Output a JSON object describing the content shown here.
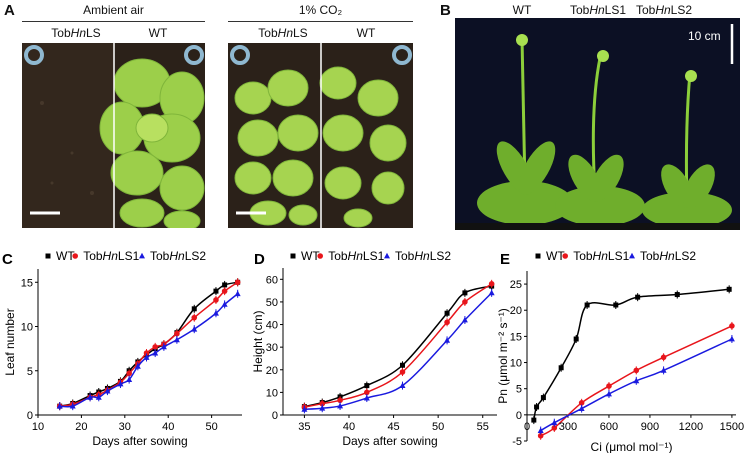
{
  "panel_A": {
    "letter": "A",
    "groups": [
      {
        "title": "Ambient air",
        "left_label": "TobHnLS",
        "right_label": "WT"
      },
      {
        "title": "1% CO₂",
        "left_label": "TobHnLS",
        "right_label": "WT"
      }
    ]
  },
  "panel_B": {
    "letter": "B",
    "labels": [
      "WT",
      "TobHnLS1",
      "TobHnLS2"
    ],
    "scale_bar": "10 cm"
  },
  "colors": {
    "WT": "#000000",
    "TobHnLS1": "#e8151b",
    "TobHnLS2": "#1a1adf"
  },
  "chart_data": [
    {
      "panel": "C",
      "type": "line",
      "xlabel": "Days after sowing",
      "ylabel": "Leaf number",
      "xlim": [
        10,
        57
      ],
      "ylim": [
        0,
        16.5
      ],
      "xticks": [
        10,
        20,
        30,
        40,
        50
      ],
      "yticks": [
        0,
        5,
        10,
        15
      ],
      "legend": "top",
      "series": [
        {
          "name": "WT",
          "marker": "square",
          "x": [
            15,
            18,
            22,
            24,
            26,
            29,
            31,
            33,
            35,
            37,
            39,
            42,
            46,
            51,
            53,
            56
          ],
          "y": [
            1,
            1.3,
            2.2,
            2.6,
            3,
            3.8,
            5,
            6,
            6.8,
            7.5,
            8,
            9.3,
            12,
            14,
            14.7,
            15
          ]
        },
        {
          "name": "TobHnLS1",
          "marker": "circle",
          "x": [
            15,
            18,
            22,
            24,
            26,
            29,
            31,
            33,
            35,
            37,
            39,
            42,
            46,
            51,
            53,
            56
          ],
          "y": [
            1,
            1.2,
            2,
            2.3,
            2.8,
            3.7,
            4.7,
            5.8,
            7,
            7.7,
            8,
            9.2,
            11,
            13,
            14,
            15
          ]
        },
        {
          "name": "TobHnLS2",
          "marker": "triangle",
          "x": [
            15,
            18,
            22,
            24,
            26,
            29,
            31,
            33,
            35,
            37,
            39,
            42,
            46,
            51,
            53,
            56
          ],
          "y": [
            1,
            1,
            2,
            2,
            2.7,
            3.5,
            4,
            5.5,
            6.5,
            7,
            7.7,
            8.5,
            9.7,
            11.5,
            12.5,
            13.7
          ]
        }
      ]
    },
    {
      "panel": "D",
      "type": "line",
      "xlabel": "Days after sowing",
      "ylabel": "Height (cm)",
      "xlim": [
        32.6,
        56.6
      ],
      "ylim": [
        0,
        65
      ],
      "xticks": [
        35,
        40,
        45,
        50,
        55
      ],
      "yticks": [
        0,
        10,
        20,
        30,
        40,
        50,
        60
      ],
      "legend": "top",
      "series": [
        {
          "name": "WT",
          "marker": "square",
          "x": [
            35,
            37,
            39,
            42,
            46,
            51,
            53,
            56
          ],
          "y": [
            3.7,
            5.5,
            8,
            13,
            22,
            45,
            54,
            57
          ]
        },
        {
          "name": "TobHnLS1",
          "marker": "circle",
          "x": [
            35,
            37,
            39,
            42,
            46,
            51,
            53,
            56
          ],
          "y": [
            3.5,
            5,
            6.5,
            10,
            19,
            41,
            50,
            58
          ]
        },
        {
          "name": "TobHnLS2",
          "marker": "triangle",
          "x": [
            35,
            37,
            39,
            42,
            46,
            51,
            53,
            56
          ],
          "y": [
            2.5,
            3,
            4,
            7.5,
            13,
            33,
            42,
            54
          ]
        }
      ]
    },
    {
      "panel": "E",
      "type": "line",
      "xlabel": "Ci (μmol mol⁻¹)",
      "ylabel": "Pn (μmol m⁻² s⁻¹)",
      "xlim": [
        0,
        1530
      ],
      "ylim": [
        -5,
        27.5
      ],
      "xticks": [
        0,
        300,
        600,
        900,
        1200,
        1500
      ],
      "yticks": [
        -5,
        0,
        5,
        10,
        15,
        20,
        25
      ],
      "legend": "top",
      "series": [
        {
          "name": "WT",
          "marker": "square",
          "x": [
            50,
            70,
            120,
            250,
            360,
            440,
            650,
            810,
            1100,
            1480
          ],
          "y": [
            -1,
            1.5,
            3.3,
            9,
            14.5,
            21,
            21,
            22.5,
            23,
            24
          ]
        },
        {
          "name": "TobHnLS1",
          "marker": "circle",
          "x": [
            100,
            200,
            400,
            600,
            800,
            1000,
            1500
          ],
          "y": [
            -4,
            -2.5,
            2.3,
            5.5,
            8.5,
            11,
            17
          ]
        },
        {
          "name": "TobHnLS2",
          "marker": "triangle",
          "x": [
            100,
            200,
            400,
            600,
            800,
            1000,
            1500
          ],
          "y": [
            -3,
            -1.5,
            1.2,
            4,
            6.5,
            8.5,
            14.5
          ]
        }
      ]
    }
  ]
}
